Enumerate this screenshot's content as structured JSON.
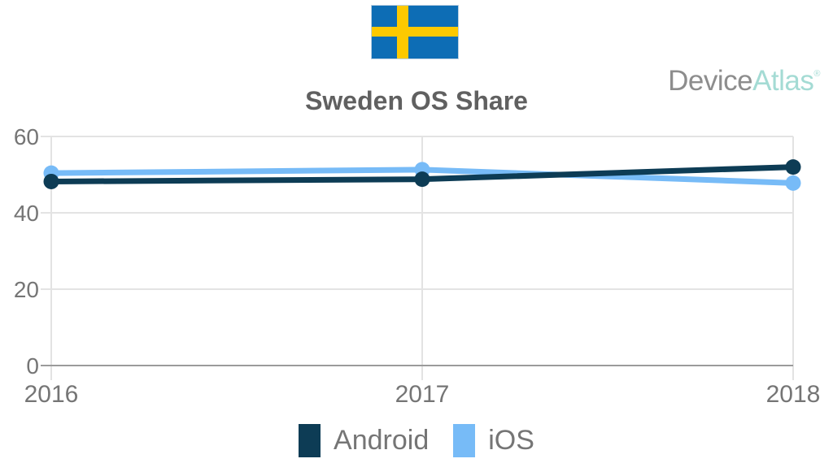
{
  "header": {
    "flag": {
      "country": "Sweden",
      "blue": "#0d6db5",
      "yellow": "#fdc900",
      "border": "#b9cfe2"
    },
    "logo": {
      "part1": "Device",
      "part2": "Atlas",
      "registered": "®",
      "part1_color": "#8d8d8d",
      "part2_color": "#a4dbd4"
    }
  },
  "chart_data": {
    "type": "line",
    "title": "Sweden OS Share",
    "title_color": "#606060",
    "xlabel": "",
    "ylabel": "",
    "categories": [
      "2016",
      "2017",
      "2018"
    ],
    "series": [
      {
        "name": "Android",
        "color": "#0d3c55",
        "values": [
          48.2,
          48.8,
          52.0
        ]
      },
      {
        "name": "iOS",
        "color": "#77bbf7",
        "values": [
          50.4,
          51.3,
          47.8
        ]
      }
    ],
    "ylim": [
      0,
      60
    ],
    "yticks": [
      0,
      20,
      40,
      60
    ],
    "grid": true,
    "legend_position": "bottom",
    "axis_text_color": "#757575",
    "gridline_color": "#e3e3e3",
    "axis_line_color": "#9b9b9b",
    "legend_text_color": "#757575"
  }
}
